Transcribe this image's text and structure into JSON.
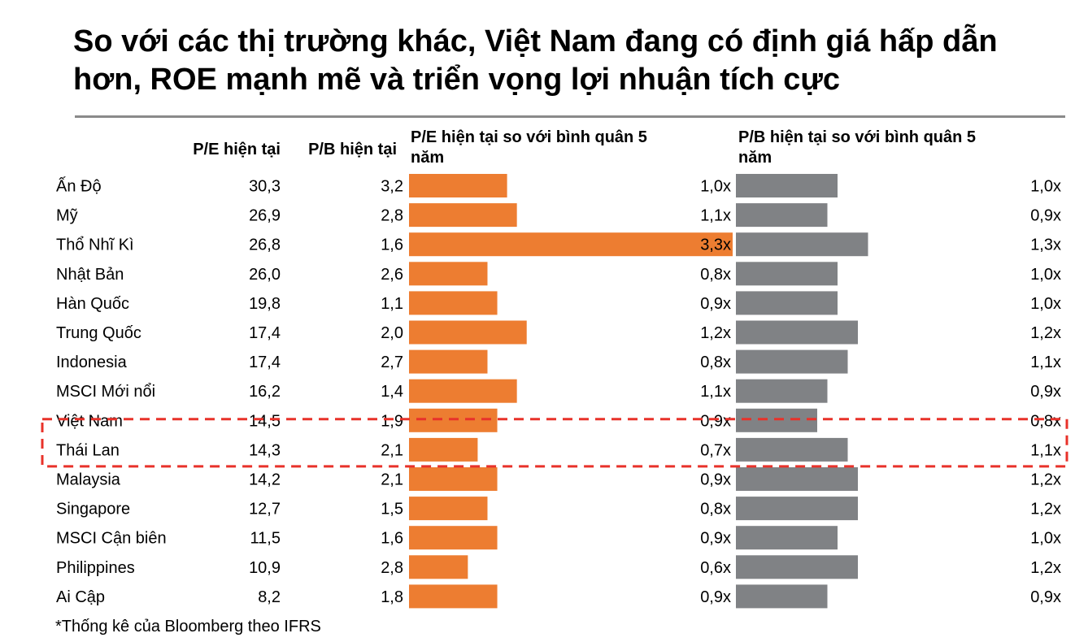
{
  "title": "So với các thị trường khác, Việt Nam đang có định giá hấp dẫn hơn, ROE mạnh mẽ và triển vọng lợi nhuận tích cực",
  "footnote": "*Thống kê của Bloomberg theo IFRS",
  "colors": {
    "pe_bar": "#ed7d31",
    "pb_bar": "#808285",
    "highlight": "#e8322a",
    "rule": "#8a8a8a"
  },
  "chart_data": {
    "type": "table",
    "columns": [
      "P/E hiện tại",
      "P/B hiện tại",
      "P/E hiện tại so với bình quân 5 năm",
      "P/B hiện tại so với bình quân 5 năm"
    ],
    "highlighted_rows": [
      "Việt Nam",
      "Thái Lan"
    ],
    "rows": [
      {
        "country": "Ấn Độ",
        "pe": "30,3",
        "pb": "3,2",
        "pe_vs5y": 1.0,
        "pe_vs5y_label": "1,0x",
        "pb_vs5y": 1.0,
        "pb_vs5y_label": "1,0x"
      },
      {
        "country": "Mỹ",
        "pe": "26,9",
        "pb": "2,8",
        "pe_vs5y": 1.1,
        "pe_vs5y_label": "1,1x",
        "pb_vs5y": 0.9,
        "pb_vs5y_label": "0,9x"
      },
      {
        "country": "Thổ Nhĩ Kì",
        "pe": "26,8",
        "pb": "1,6",
        "pe_vs5y": 3.3,
        "pe_vs5y_label": "3,3x",
        "pb_vs5y": 1.3,
        "pb_vs5y_label": "1,3x"
      },
      {
        "country": "Nhật Bản",
        "pe": "26,0",
        "pb": "2,6",
        "pe_vs5y": 0.8,
        "pe_vs5y_label": "0,8x",
        "pb_vs5y": 1.0,
        "pb_vs5y_label": "1,0x"
      },
      {
        "country": "Hàn Quốc",
        "pe": "19,8",
        "pb": "1,1",
        "pe_vs5y": 0.9,
        "pe_vs5y_label": "0,9x",
        "pb_vs5y": 1.0,
        "pb_vs5y_label": "1,0x"
      },
      {
        "country": "Trung Quốc",
        "pe": "17,4",
        "pb": "2,0",
        "pe_vs5y": 1.2,
        "pe_vs5y_label": "1,2x",
        "pb_vs5y": 1.2,
        "pb_vs5y_label": "1,2x"
      },
      {
        "country": "Indonesia",
        "pe": "17,4",
        "pb": "2,7",
        "pe_vs5y": 0.8,
        "pe_vs5y_label": "0,8x",
        "pb_vs5y": 1.1,
        "pb_vs5y_label": "1,1x"
      },
      {
        "country": "MSCI Mới nổi",
        "pe": "16,2",
        "pb": "1,4",
        "pe_vs5y": 1.1,
        "pe_vs5y_label": "1,1x",
        "pb_vs5y": 0.9,
        "pb_vs5y_label": "0,9x"
      },
      {
        "country": "Việt Nam",
        "pe": "14,5",
        "pb": "1,9",
        "pe_vs5y": 0.9,
        "pe_vs5y_label": "0,9x",
        "pb_vs5y": 0.8,
        "pb_vs5y_label": "0,8x"
      },
      {
        "country": "Thái Lan",
        "pe": "14,3",
        "pb": "2,1",
        "pe_vs5y": 0.7,
        "pe_vs5y_label": "0,7x",
        "pb_vs5y": 1.1,
        "pb_vs5y_label": "1,1x"
      },
      {
        "country": "Malaysia",
        "pe": "14,2",
        "pb": "2,1",
        "pe_vs5y": 0.9,
        "pe_vs5y_label": "0,9x",
        "pb_vs5y": 1.2,
        "pb_vs5y_label": "1,2x"
      },
      {
        "country": "Singapore",
        "pe": "12,7",
        "pb": "1,5",
        "pe_vs5y": 0.8,
        "pe_vs5y_label": "0,8x",
        "pb_vs5y": 1.2,
        "pb_vs5y_label": "1,2x"
      },
      {
        "country": "MSCI Cận biên",
        "pe": "11,5",
        "pb": "1,6",
        "pe_vs5y": 0.9,
        "pe_vs5y_label": "0,9x",
        "pb_vs5y": 1.0,
        "pb_vs5y_label": "1,0x"
      },
      {
        "country": "Philippines",
        "pe": "10,9",
        "pb": "2,8",
        "pe_vs5y": 0.6,
        "pe_vs5y_label": "0,6x",
        "pb_vs5y": 1.2,
        "pb_vs5y_label": "1,2x"
      },
      {
        "country": "Ai Cập",
        "pe": "8,2",
        "pb": "1,8",
        "pe_vs5y": 0.9,
        "pe_vs5y_label": "0,9x",
        "pb_vs5y": 0.9,
        "pb_vs5y_label": "0,9x"
      }
    ]
  }
}
